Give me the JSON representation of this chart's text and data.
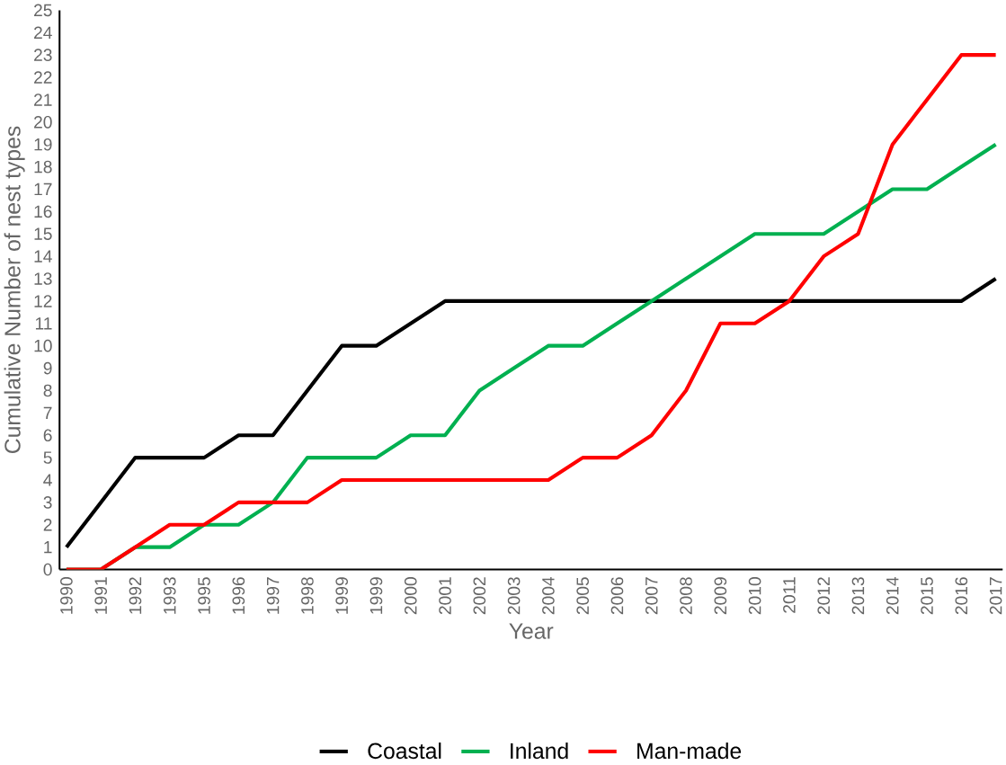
{
  "chart_data": {
    "type": "line",
    "xlabel": "Year",
    "ylabel": "Cumulative Number of nest types",
    "categories": [
      "1990",
      "1991",
      "1992",
      "1993",
      "1995",
      "1996",
      "1997",
      "1998",
      "1999",
      "1999",
      "2000",
      "2001",
      "2002",
      "2003",
      "2004",
      "2005",
      "2006",
      "2007",
      "2008",
      "2009",
      "2010",
      "2011",
      "2012",
      "2013",
      "2014",
      "2015",
      "2016",
      "2017"
    ],
    "series": [
      {
        "name": "Coastal",
        "color": "#000000",
        "values": [
          1,
          3,
          5,
          5,
          5,
          6,
          6,
          8,
          10,
          10,
          11,
          12,
          12,
          12,
          12,
          12,
          12,
          12,
          12,
          12,
          12,
          12,
          12,
          12,
          12,
          12,
          12,
          13
        ]
      },
      {
        "name": "Inland",
        "color": "#00b050",
        "values": [
          0,
          0,
          1,
          1,
          2,
          2,
          3,
          5,
          5,
          5,
          6,
          6,
          8,
          9,
          10,
          10,
          11,
          12,
          13,
          14,
          15,
          15,
          15,
          16,
          17,
          17,
          18,
          19
        ]
      },
      {
        "name": "Man-made",
        "color": "#ff0000",
        "values": [
          0,
          0,
          1,
          2,
          2,
          3,
          3,
          3,
          4,
          4,
          4,
          4,
          4,
          4,
          4,
          5,
          5,
          6,
          8,
          11,
          11,
          12,
          14,
          15,
          19,
          21,
          23,
          23
        ]
      }
    ],
    "ylim": [
      0,
      25
    ],
    "yticks": [
      0,
      1,
      2,
      3,
      4,
      5,
      6,
      7,
      8,
      9,
      10,
      11,
      12,
      13,
      14,
      15,
      16,
      17,
      18,
      19,
      20,
      21,
      22,
      23,
      24,
      25
    ],
    "grid": false,
    "legend": "bottom",
    "marker": "none",
    "line_style": "solid"
  }
}
